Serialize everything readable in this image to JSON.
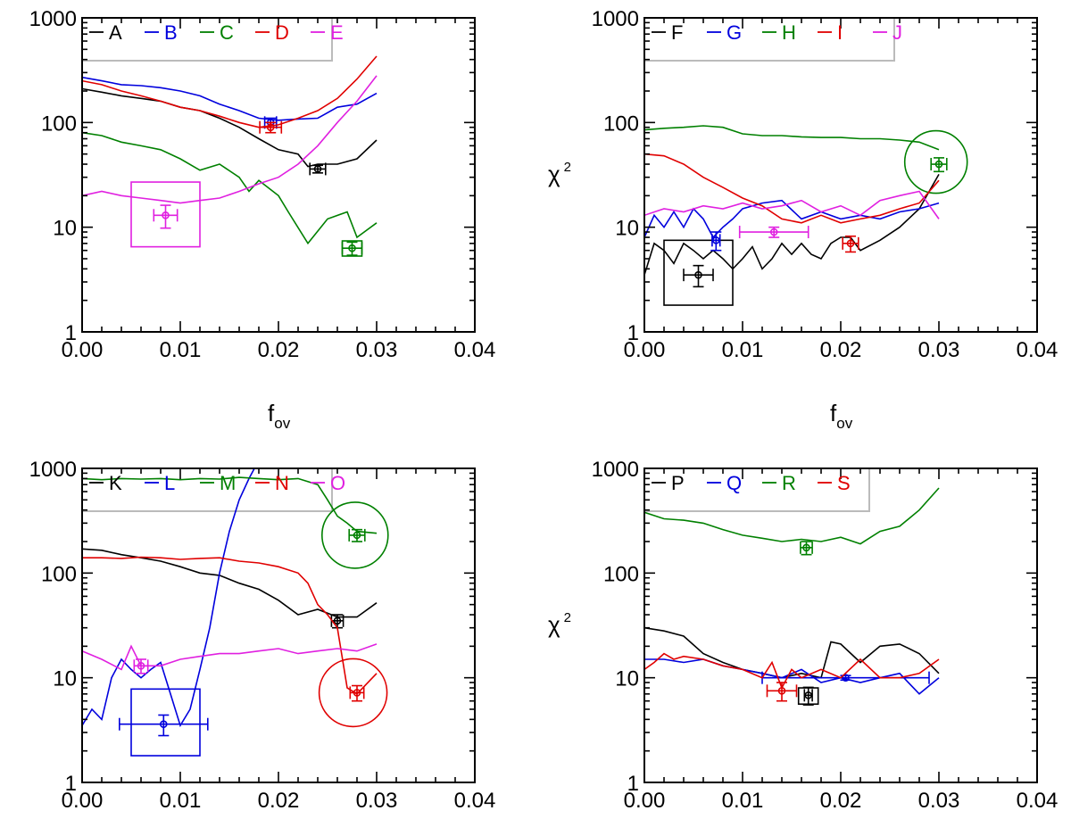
{
  "colors": {
    "black": "#000000",
    "blue": "#0000dd",
    "green": "#008000",
    "red": "#e00000",
    "magenta": "#e020e0",
    "legend_box": "#bbbbbb"
  },
  "chart_data": [
    {
      "type": "line",
      "panel": "top-left",
      "xlabel": "f_ov",
      "ylabel": "",
      "xlim": [
        0,
        0.04
      ],
      "ylim": [
        1,
        1000
      ],
      "yscale": "log",
      "xticks": [
        "0.00",
        "0.01",
        "0.02",
        "0.03",
        "0.04"
      ],
      "yticks": [
        "1",
        "10",
        "100",
        "1000"
      ],
      "grid": false,
      "legend_position": "top-left",
      "series": [
        {
          "name": "A",
          "color": "black",
          "x": [
            0,
            0.002,
            0.004,
            0.006,
            0.008,
            0.01,
            0.012,
            0.014,
            0.016,
            0.018,
            0.02,
            0.022,
            0.023,
            0.024,
            0.026,
            0.028,
            0.03
          ],
          "y": [
            210,
            195,
            180,
            170,
            160,
            140,
            130,
            110,
            90,
            70,
            55,
            50,
            38,
            40,
            40,
            45,
            68
          ],
          "best": {
            "x": 0.024,
            "y": 36,
            "xerr": 0.0008,
            "yerr": 3
          }
        },
        {
          "name": "B",
          "color": "blue",
          "x": [
            0,
            0.002,
            0.004,
            0.006,
            0.008,
            0.01,
            0.012,
            0.014,
            0.016,
            0.018,
            0.02,
            0.022,
            0.024,
            0.026,
            0.028,
            0.03
          ],
          "y": [
            270,
            250,
            230,
            225,
            215,
            200,
            180,
            150,
            130,
            110,
            105,
            108,
            110,
            140,
            150,
            190
          ],
          "best": {
            "x": 0.0192,
            "y": 100,
            "xerr": 0.0006,
            "yerr": 10
          }
        },
        {
          "name": "C",
          "color": "green",
          "x": [
            0,
            0.002,
            0.004,
            0.006,
            0.008,
            0.01,
            0.012,
            0.014,
            0.016,
            0.017,
            0.018,
            0.02,
            0.021,
            0.023,
            0.025,
            0.027,
            0.028,
            0.03
          ],
          "y": [
            80,
            75,
            65,
            60,
            55,
            45,
            35,
            40,
            30,
            22,
            28,
            20,
            14,
            7,
            12,
            14,
            8,
            11
          ],
          "best": {
            "x": 0.0275,
            "y": 6.3,
            "xerr": 0.001,
            "yerr": 0.9,
            "box": [
              0.0265,
              0.0285,
              5.3,
              7.4
            ]
          }
        },
        {
          "name": "D",
          "color": "red",
          "x": [
            0,
            0.002,
            0.004,
            0.006,
            0.008,
            0.01,
            0.012,
            0.014,
            0.016,
            0.018,
            0.02,
            0.022,
            0.024,
            0.026,
            0.028,
            0.03
          ],
          "y": [
            250,
            230,
            200,
            180,
            160,
            140,
            130,
            115,
            100,
            90,
            95,
            110,
            130,
            170,
            260,
            430
          ],
          "best": {
            "x": 0.0192,
            "y": 90,
            "xerr": 0.0011,
            "yerr": 10
          }
        },
        {
          "name": "E",
          "color": "magenta",
          "x": [
            0,
            0.002,
            0.004,
            0.006,
            0.008,
            0.01,
            0.012,
            0.014,
            0.016,
            0.018,
            0.02,
            0.022,
            0.024,
            0.026,
            0.028,
            0.03
          ],
          "y": [
            20,
            22,
            20,
            19,
            18,
            17,
            18,
            19,
            22,
            26,
            30,
            40,
            60,
            100,
            160,
            280
          ],
          "best": {
            "x": 0.0085,
            "y": 13,
            "xerr": 0.0012,
            "yerr": 3.2,
            "box": [
              0.005,
              0.012,
              6.5,
              27
            ]
          }
        }
      ]
    },
    {
      "type": "line",
      "panel": "top-right",
      "xlabel": "f_ov",
      "ylabel": "χ²",
      "xlim": [
        0,
        0.04
      ],
      "ylim": [
        1,
        1000
      ],
      "yscale": "log",
      "xticks": [
        "0.00",
        "0.01",
        "0.02",
        "0.03",
        "0.04"
      ],
      "yticks": [
        "1",
        "10",
        "100",
        "1000"
      ],
      "grid": false,
      "legend_position": "top-left",
      "series": [
        {
          "name": "F",
          "color": "black",
          "x": [
            0,
            0.001,
            0.002,
            0.003,
            0.004,
            0.005,
            0.006,
            0.007,
            0.008,
            0.009,
            0.01,
            0.011,
            0.012,
            0.013,
            0.014,
            0.015,
            0.016,
            0.017,
            0.018,
            0.019,
            0.02,
            0.021,
            0.022,
            0.024,
            0.026,
            0.028,
            0.03
          ],
          "y": [
            3.5,
            7,
            6,
            4.5,
            7,
            6,
            5,
            6,
            5,
            4,
            5,
            6.5,
            4,
            5,
            7,
            5.5,
            7,
            5.5,
            5,
            7,
            8,
            8,
            6,
            7.5,
            10,
            15,
            32
          ],
          "best": {
            "x": 0.0055,
            "y": 3.5,
            "xerr": 0.0015,
            "yerr": 0.8,
            "box": [
              0.002,
              0.009,
              1.8,
              7.5
            ]
          }
        },
        {
          "name": "G",
          "color": "blue",
          "x": [
            0,
            0.001,
            0.002,
            0.003,
            0.004,
            0.005,
            0.006,
            0.007,
            0.008,
            0.009,
            0.01,
            0.012,
            0.014,
            0.016,
            0.018,
            0.02,
            0.022,
            0.024,
            0.026,
            0.028,
            0.03
          ],
          "y": [
            8,
            13,
            10,
            14,
            10,
            15,
            12,
            8,
            10,
            12,
            15,
            17,
            18,
            12,
            14,
            12,
            13,
            12,
            14,
            15,
            17
          ],
          "best": {
            "x": 0.0073,
            "y": 7.5,
            "xerr": 0.0004,
            "yerr": 1.5
          }
        },
        {
          "name": "H",
          "color": "green",
          "x": [
            0,
            0.002,
            0.004,
            0.006,
            0.008,
            0.01,
            0.012,
            0.014,
            0.016,
            0.018,
            0.02,
            0.022,
            0.024,
            0.026,
            0.028,
            0.03
          ],
          "y": [
            85,
            88,
            90,
            93,
            90,
            78,
            75,
            75,
            73,
            72,
            72,
            70,
            70,
            68,
            65,
            55
          ],
          "best": {
            "x": 0.03,
            "y": 40,
            "xerr": 0.0008,
            "yerr": 6,
            "circle": {
              "x": 0.0297,
              "y": 42,
              "r": 35
            }
          }
        },
        {
          "name": "I",
          "color": "red",
          "x": [
            0,
            0.002,
            0.004,
            0.006,
            0.008,
            0.01,
            0.012,
            0.014,
            0.016,
            0.018,
            0.02,
            0.022,
            0.024,
            0.026,
            0.028,
            0.03
          ],
          "y": [
            50,
            48,
            40,
            30,
            24,
            19,
            16,
            12,
            11,
            13,
            11,
            12,
            13,
            15,
            17,
            28
          ],
          "best": {
            "x": 0.021,
            "y": 7,
            "xerr": 0.0008,
            "yerr": 1.2
          }
        },
        {
          "name": "J",
          "color": "magenta",
          "x": [
            0,
            0.002,
            0.004,
            0.006,
            0.008,
            0.01,
            0.012,
            0.014,
            0.016,
            0.018,
            0.02,
            0.022,
            0.024,
            0.026,
            0.028,
            0.03
          ],
          "y": [
            13,
            15,
            14,
            16,
            15,
            17,
            15,
            16,
            18,
            14,
            16,
            13,
            18,
            20,
            22,
            12
          ],
          "best": {
            "x": 0.0132,
            "y": 9,
            "xerr": 0.0035,
            "yerr": 1
          }
        }
      ]
    },
    {
      "type": "line",
      "panel": "bottom-left",
      "xlabel": "",
      "ylabel": "",
      "xlim": [
        0,
        0.04
      ],
      "ylim": [
        1,
        1000
      ],
      "yscale": "log",
      "xticks": [
        "0.00",
        "0.01",
        "0.02",
        "0.03",
        "0.04"
      ],
      "yticks": [
        "1",
        "10",
        "100",
        "1000"
      ],
      "grid": false,
      "legend_position": "top-left",
      "series": [
        {
          "name": "K",
          "color": "black",
          "x": [
            0,
            0.002,
            0.004,
            0.006,
            0.008,
            0.01,
            0.012,
            0.014,
            0.016,
            0.018,
            0.02,
            0.022,
            0.024,
            0.026,
            0.028,
            0.03
          ],
          "y": [
            170,
            165,
            150,
            140,
            130,
            115,
            100,
            95,
            80,
            70,
            55,
            40,
            45,
            38,
            38,
            52
          ],
          "best": {
            "x": 0.026,
            "y": 35,
            "xerr": 0.0006,
            "yerr": 5
          }
        },
        {
          "name": "L",
          "color": "blue",
          "x": [
            0,
            0.001,
            0.002,
            0.003,
            0.004,
            0.005,
            0.006,
            0.007,
            0.008,
            0.009,
            0.01,
            0.011,
            0.012,
            0.013,
            0.014,
            0.015,
            0.016,
            0.017,
            0.018
          ],
          "y": [
            3.5,
            5,
            4,
            10,
            15,
            12,
            10,
            12,
            14,
            7,
            3.5,
            5,
            12,
            30,
            100,
            250,
            500,
            800,
            1200
          ],
          "best": {
            "x": 0.0083,
            "y": 3.6,
            "xerr": 0.0045,
            "yerr": 0.8,
            "box": [
              0.005,
              0.012,
              1.8,
              7.8
            ]
          }
        },
        {
          "name": "M",
          "color": "green",
          "x": [
            0,
            0.002,
            0.004,
            0.006,
            0.008,
            0.01,
            0.012,
            0.014,
            0.016,
            0.018,
            0.02,
            0.022,
            0.024,
            0.025,
            0.026,
            0.027,
            0.028,
            0.03
          ],
          "y": [
            800,
            780,
            800,
            790,
            800,
            780,
            800,
            790,
            820,
            800,
            780,
            800,
            700,
            500,
            350,
            300,
            250,
            240
          ],
          "best": {
            "x": 0.028,
            "y": 230,
            "xerr": 0.0008,
            "yerr": 30,
            "circle": {
              "x": 0.0278,
              "y": 230,
              "r": 37
            }
          }
        },
        {
          "name": "N",
          "color": "red",
          "x": [
            0,
            0.002,
            0.004,
            0.006,
            0.008,
            0.01,
            0.012,
            0.014,
            0.016,
            0.018,
            0.02,
            0.022,
            0.023,
            0.024,
            0.025,
            0.026,
            0.027,
            0.028,
            0.03
          ],
          "y": [
            140,
            140,
            138,
            142,
            140,
            135,
            138,
            140,
            130,
            125,
            115,
            100,
            80,
            50,
            40,
            30,
            8,
            7,
            11
          ],
          "best": {
            "x": 0.028,
            "y": 7.2,
            "xerr": 0.0007,
            "yerr": 1.2,
            "circle": {
              "x": 0.0276,
              "y": 7.2,
              "r": 38
            }
          }
        },
        {
          "name": "O",
          "color": "magenta",
          "x": [
            0,
            0.002,
            0.004,
            0.005,
            0.006,
            0.008,
            0.01,
            0.012,
            0.014,
            0.016,
            0.018,
            0.02,
            0.022,
            0.024,
            0.026,
            0.028,
            0.03
          ],
          "y": [
            18,
            15,
            12,
            20,
            13,
            13,
            15,
            16,
            17,
            17,
            18,
            19,
            17,
            18,
            19,
            18,
            21
          ],
          "best": {
            "x": 0.006,
            "y": 13,
            "xerr": 0.0007,
            "yerr": 2
          }
        }
      ]
    },
    {
      "type": "line",
      "panel": "bottom-right",
      "xlabel": "",
      "ylabel": "χ²",
      "xlim": [
        0,
        0.04
      ],
      "ylim": [
        1,
        1000
      ],
      "yscale": "log",
      "xticks": [
        "0.00",
        "0.01",
        "0.02",
        "0.03",
        "0.04"
      ],
      "yticks": [
        "1",
        "10",
        "100",
        "1000"
      ],
      "grid": false,
      "legend_position": "top-left",
      "series": [
        {
          "name": "P",
          "color": "black",
          "x": [
            0,
            0.002,
            0.004,
            0.006,
            0.008,
            0.01,
            0.012,
            0.014,
            0.016,
            0.018,
            0.019,
            0.02,
            0.022,
            0.024,
            0.026,
            0.028,
            0.03
          ],
          "y": [
            30,
            28,
            25,
            17,
            14,
            12,
            11,
            10,
            11,
            10,
            22,
            21,
            14,
            20,
            21,
            17,
            11
          ],
          "best": {
            "x": 0.0167,
            "y": 6.8,
            "xerr": 0.0004,
            "yerr": 1.3,
            "box": [
              0.0157,
              0.0177,
              5.6,
              8.0
            ]
          }
        },
        {
          "name": "Q",
          "color": "blue",
          "x": [
            0,
            0.002,
            0.004,
            0.006,
            0.008,
            0.01,
            0.012,
            0.014,
            0.016,
            0.018,
            0.02,
            0.022,
            0.024,
            0.026,
            0.028,
            0.03
          ],
          "y": [
            15,
            15,
            14,
            15,
            13,
            12,
            11,
            10,
            12,
            9,
            10,
            9,
            10,
            11,
            7,
            10
          ],
          "best": {
            "x": 0.0205,
            "y": 10,
            "xerr": 0.0085,
            "yerr": 0.5
          }
        },
        {
          "name": "R",
          "color": "green",
          "x": [
            0,
            0.002,
            0.004,
            0.006,
            0.008,
            0.01,
            0.012,
            0.014,
            0.016,
            0.018,
            0.02,
            0.022,
            0.024,
            0.026,
            0.028,
            0.03
          ],
          "y": [
            380,
            330,
            320,
            300,
            260,
            230,
            215,
            200,
            210,
            200,
            220,
            190,
            250,
            280,
            400,
            650
          ],
          "best": {
            "x": 0.0165,
            "y": 175,
            "xerr": 0.0006,
            "yerr": 25
          }
        },
        {
          "name": "S",
          "color": "red",
          "x": [
            0,
            0.001,
            0.002,
            0.003,
            0.004,
            0.006,
            0.008,
            0.01,
            0.012,
            0.013,
            0.014,
            0.015,
            0.016,
            0.018,
            0.02,
            0.022,
            0.024,
            0.026,
            0.028,
            0.03
          ],
          "y": [
            12,
            14,
            17,
            15,
            16,
            15,
            13,
            12,
            10,
            14,
            8,
            12,
            10,
            12,
            10,
            15,
            10,
            10,
            11,
            15
          ],
          "best": {
            "x": 0.014,
            "y": 7.5,
            "xerr": 0.0015,
            "yerr": 1.5
          }
        }
      ]
    }
  ]
}
